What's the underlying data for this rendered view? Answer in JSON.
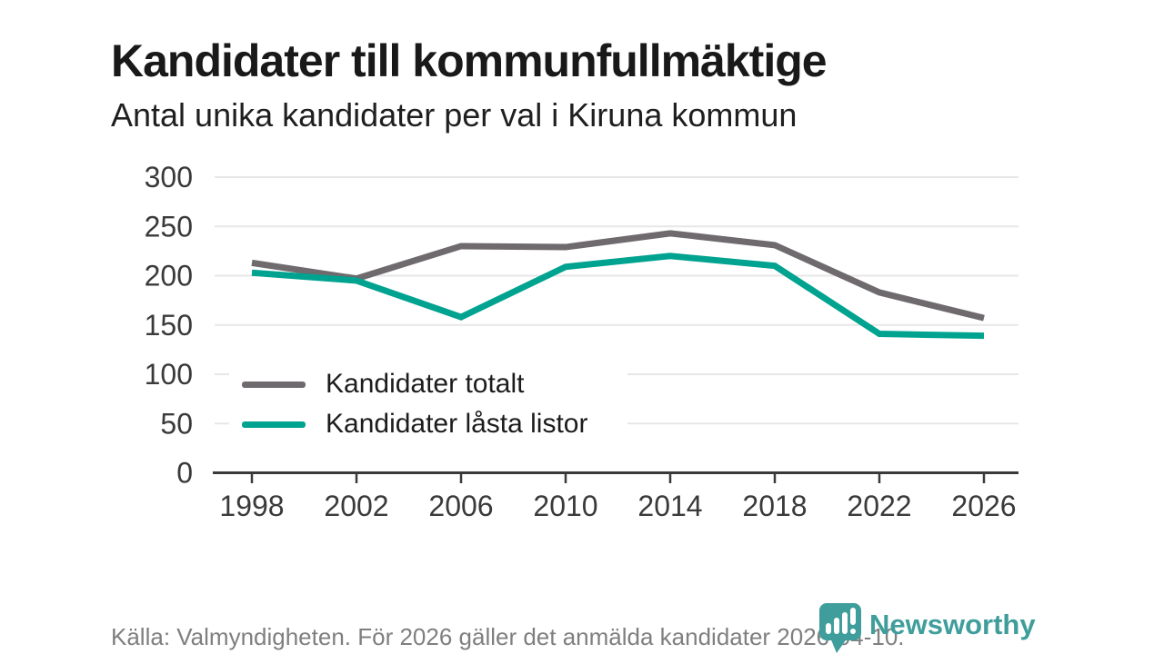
{
  "title": "Kandidater till kommunfullmäktige",
  "subtitle": "Antal unika kandidater per val i Kiruna kommun",
  "chart_data": {
    "type": "line",
    "x": [
      1998,
      2002,
      2006,
      2010,
      2014,
      2018,
      2022,
      2026
    ],
    "series": [
      {
        "name": "Kandidater totalt",
        "color": "#6e6a6e",
        "values": [
          213,
          197,
          230,
          229,
          243,
          231,
          183,
          157
        ]
      },
      {
        "name": "Kandidater låsta listor",
        "color": "#00a290",
        "values": [
          203,
          195,
          158,
          209,
          220,
          210,
          141,
          139
        ]
      }
    ],
    "ylim": [
      0,
      300
    ],
    "yticks": [
      0,
      50,
      100,
      150,
      200,
      250,
      300
    ],
    "grid": "horizontal",
    "legend_position": "inside-bottom-left",
    "axis_color": "#3a3a3a",
    "gridline_color": "#e7e7e7",
    "tick_label_color": "#3a3a3a"
  },
  "footer": {
    "source": "Källa: Valmyndigheten. För 2026 gäller det anmälda kandidater 2026-04-10."
  },
  "logo": {
    "text": "Newsworthy",
    "icon": "speech-bubble-bar-chart-icon",
    "color": "#3f9e9b"
  }
}
